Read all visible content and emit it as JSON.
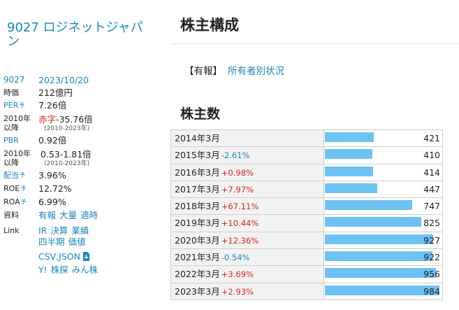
{
  "company": {
    "title": "9027 ロジネットジャパン"
  },
  "summary": {
    "code": "9027",
    "date": "2023/10/20",
    "market_cap_label": "時価",
    "market_cap": "212億円",
    "per_label": "PER",
    "per_mark": "予",
    "per": "7.26倍",
    "per_range_label": "2010年以降",
    "per_range_prefix": "赤字",
    "per_range": "-35.76倍",
    "per_range_period": "(2010-2023年)",
    "pbr_label": "PBR",
    "pbr": "0.92倍",
    "pbr_range_label": "2010年以降",
    "pbr_range": "0.53-1.81倍",
    "pbr_range_period": "(2010-2023年)",
    "dividend_label": "配当",
    "dividend_mark": "予",
    "dividend": "3.96%",
    "roe_label": "ROE",
    "roe_mark": "予",
    "roe": "12.72%",
    "roa_label": "ROA",
    "roa_mark": "予",
    "roa": "6.99%",
    "docs_label": "資料",
    "docs_links": [
      "有報",
      "大量",
      "適時"
    ],
    "link_label": "Link",
    "links_row1": [
      "IR",
      "決算",
      "業績"
    ],
    "links_row2": [
      "四半期",
      "価値"
    ],
    "links_row3": "CSV,JSON",
    "links_row4": [
      "Y!",
      "株探",
      "みん株"
    ]
  },
  "main": {
    "title": "株主構成",
    "yuho_bracket": "【有報】",
    "yuho_link": "所有者別状況",
    "section_title": "株主数"
  },
  "chart_data": {
    "type": "bar",
    "title": "株主数",
    "categories": [
      "2014年3月",
      "2015年3月",
      "2016年3月",
      "2017年3月",
      "2018年3月",
      "2019年3月",
      "2020年3月",
      "2021年3月",
      "2022年3月",
      "2023年3月"
    ],
    "changes": [
      "",
      "-2.61%",
      "+0.98%",
      "+7.97%",
      "+67.11%",
      "+10.44%",
      "+12.36%",
      "-0.54%",
      "+3.69%",
      "+2.93%"
    ],
    "values": [
      421,
      410,
      414,
      447,
      747,
      825,
      927,
      922,
      956,
      984
    ],
    "ylim": [
      0,
      984
    ]
  },
  "colors": {
    "accent": "#1a86c0",
    "bar": "#6ec3f3",
    "up": "#d9261c",
    "down": "#1a86c0"
  }
}
